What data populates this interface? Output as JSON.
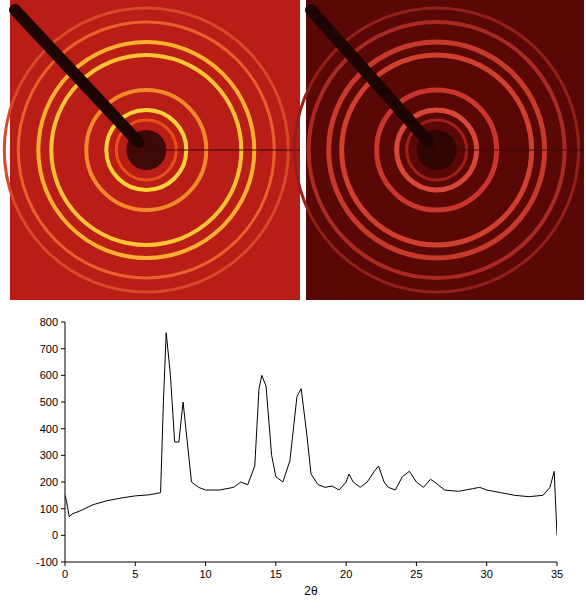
{
  "chart_data": {
    "type": "line",
    "x_label": "2θ",
    "color": "#000000",
    "xlim": [
      0,
      35
    ],
    "xticks": [
      0,
      5,
      10,
      15,
      20,
      25,
      30,
      35
    ],
    "ylim": [
      -100,
      800
    ],
    "yticks": [
      -100,
      0,
      100,
      200,
      300,
      400,
      500,
      600,
      700,
      800
    ],
    "grid": false,
    "x": [
      0,
      0.1,
      0.3,
      0.5,
      1,
      2,
      3,
      4,
      5,
      6,
      6.8,
      7.0,
      7.2,
      7.5,
      7.8,
      8.1,
      8.4,
      8.7,
      9.0,
      9.5,
      10,
      11,
      12,
      12.5,
      13,
      13.5,
      13.8,
      14.0,
      14.3,
      14.7,
      15,
      15.5,
      16,
      16.5,
      16.8,
      17.2,
      17.5,
      18,
      18.5,
      19,
      19.5,
      20,
      20.2,
      20.5,
      21,
      21.5,
      22,
      22.3,
      22.7,
      23,
      23.5,
      24,
      24.5,
      25,
      25.5,
      26,
      26.3,
      27,
      28,
      29,
      29.5,
      30,
      31,
      32,
      33,
      34,
      34.5,
      34.8,
      35
    ],
    "values": [
      150,
      130,
      70,
      80,
      90,
      115,
      130,
      140,
      148,
      152,
      160,
      500,
      760,
      600,
      350,
      350,
      500,
      350,
      200,
      180,
      170,
      170,
      180,
      200,
      190,
      260,
      550,
      600,
      560,
      300,
      220,
      200,
      280,
      520,
      550,
      380,
      230,
      190,
      180,
      185,
      170,
      200,
      230,
      200,
      180,
      200,
      240,
      260,
      200,
      180,
      170,
      220,
      240,
      200,
      180,
      210,
      200,
      170,
      165,
      175,
      180,
      170,
      160,
      150,
      145,
      150,
      180,
      240,
      0
    ]
  }
}
